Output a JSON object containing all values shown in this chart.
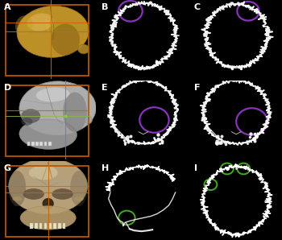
{
  "background_color": "#000000",
  "label_color": "#ffffff",
  "label_fontsize": 8,
  "labels": [
    "A",
    "B",
    "C",
    "D",
    "E",
    "F",
    "G",
    "H",
    "I"
  ],
  "orange_box_color": "#bb5500",
  "purple_circle_color": "#8833bb",
  "purple_circle_lw": 1.6,
  "green_circle_color": "#44aa22",
  "green_circle_lw": 1.4,
  "crosshair_orange": "#cc6600",
  "crosshair_blue": "#4488cc",
  "crosshair_green": "#88bb44",
  "crosshair_purple": "#aa44bb",
  "ct_color": "#dddddd"
}
